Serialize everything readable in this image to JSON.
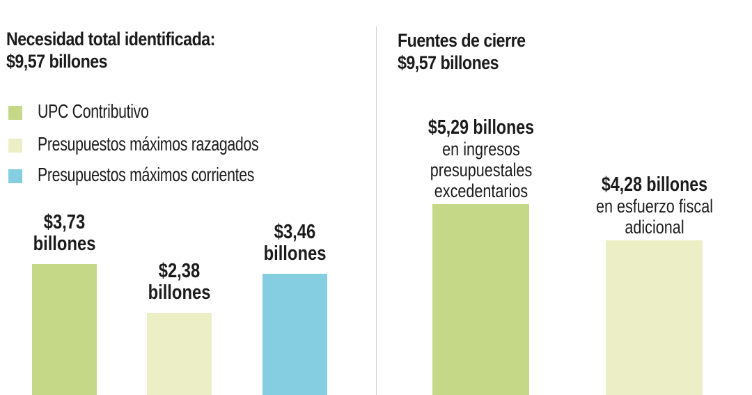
{
  "colors": {
    "upc_contributivo": "#c5d887",
    "presupuestos_rezagados": "#ecefc6",
    "presupuestos_corrientes": "#85cee1",
    "divider": "#cfcfcf"
  },
  "left": {
    "title_line1": "Necesidad total identificada:",
    "title_line2": "$9,57 billones",
    "legend": [
      {
        "label": "UPC Contributivo",
        "color": "#c5d887"
      },
      {
        "label": "Presupuestos máximos razagados",
        "color": "#ecefc6"
      },
      {
        "label": "Presupuestos máximos corrientes",
        "color": "#85cee1"
      }
    ]
  },
  "right": {
    "title_line1": "Fuentes de cierre",
    "title_line2": "$9,57 billones"
  },
  "chart_data": [
    {
      "type": "bar",
      "title": "Necesidad total identificada: $9,57 billones",
      "categories": [
        "UPC Contributivo",
        "Presupuestos máximos razagados",
        "Presupuestos máximos corrientes"
      ],
      "values": [
        3.73,
        2.38,
        3.46
      ],
      "colors": [
        "#c5d887",
        "#ecefc6",
        "#85cee1"
      ],
      "value_labels": [
        {
          "line1": "$3,73",
          "line2": "billones"
        },
        {
          "line1": "$2,38",
          "line2": "billones"
        },
        {
          "line1": "$3,46",
          "line2": "billones"
        }
      ],
      "legend": "top-left",
      "grid": false
    },
    {
      "type": "bar",
      "title": "Fuentes de cierre $9,57 billones",
      "values": [
        5.29,
        4.28
      ],
      "colors": [
        "#c5d887",
        "#ecefc6"
      ],
      "value_labels": [
        {
          "value": "$5,29 billones",
          "desc": [
            "en ingresos",
            "presupuestales",
            "excedentarios"
          ]
        },
        {
          "value": "$4,28 billones",
          "desc": [
            "en esfuerzo fiscal",
            "adicional"
          ]
        }
      ],
      "grid": false
    }
  ]
}
